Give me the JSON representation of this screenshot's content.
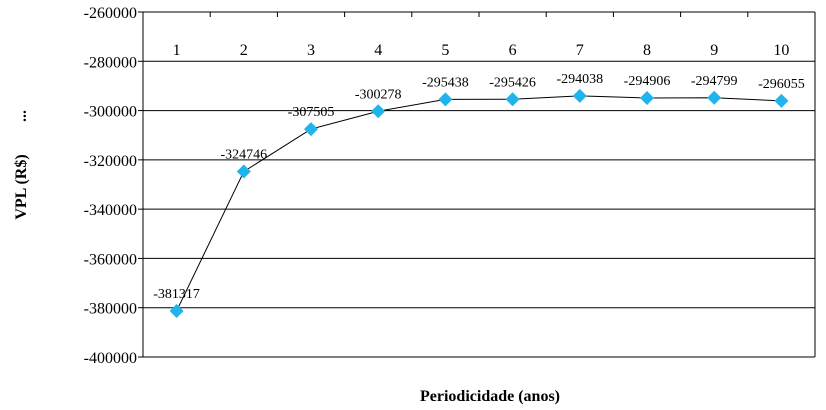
{
  "chart_data": {
    "type": "line",
    "title": "",
    "xlabel": "Periodicidade (anos)",
    "ylabel": "VPL (R$)",
    "ylabel_suffix": "...",
    "x": [
      1,
      2,
      3,
      4,
      5,
      6,
      7,
      8,
      9,
      10
    ],
    "series": [
      {
        "values": [
          -381317,
          -324746,
          -307505,
          -300278,
          -295438,
          -295426,
          -294038,
          -294906,
          -294799,
          -296055
        ],
        "labels": [
          "-381317",
          "-324746",
          "-307505",
          "-300278",
          "-295438",
          "-295426",
          "-294038",
          "-294906",
          "-294799",
          "-296055"
        ],
        "marker": "diamond",
        "marker_color": "#1FB5EC",
        "line_color": "#000000"
      }
    ],
    "ylim": [
      -400000,
      -260000
    ],
    "yticks": [
      "-260000",
      "-280000",
      "-300000",
      "-320000",
      "-340000",
      "-360000",
      "-380000",
      "-400000"
    ],
    "xticks": [
      "1",
      "2",
      "3",
      "4",
      "5",
      "6",
      "7",
      "8",
      "9",
      "10"
    ],
    "x_axis_position": "top",
    "grid": true
  }
}
